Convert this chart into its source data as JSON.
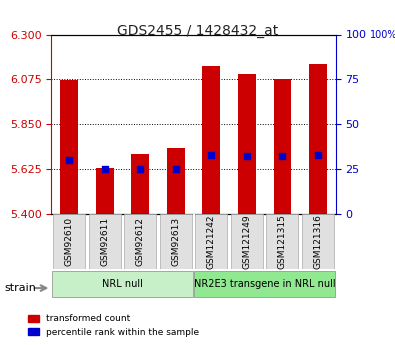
{
  "title": "GDS2455 / 1428432_at",
  "samples": [
    "GSM92610",
    "GSM92611",
    "GSM92612",
    "GSM92613",
    "GSM121242",
    "GSM121249",
    "GSM121315",
    "GSM121316"
  ],
  "red_values": [
    6.07,
    5.63,
    5.7,
    5.73,
    6.14,
    6.1,
    6.075,
    6.15
  ],
  "blue_values": [
    30,
    25,
    25,
    25,
    33,
    32,
    32,
    33
  ],
  "ymin": 5.4,
  "ymax": 6.3,
  "yticks_left": [
    5.4,
    5.625,
    5.85,
    6.075,
    6.3
  ],
  "yticks_right": [
    0,
    25,
    50,
    75,
    100
  ],
  "groups": [
    {
      "label": "NRL null",
      "start": 0,
      "end": 4,
      "color": "#c8f0c8"
    },
    {
      "label": "NR2E3 transgene in NRL null",
      "start": 4,
      "end": 8,
      "color": "#90e890"
    }
  ],
  "bar_color": "#cc0000",
  "dot_color": "#0000cc",
  "axis_color_left": "#cc0000",
  "axis_color_right": "#0000cc",
  "background_color": "#ffffff",
  "plot_bg_color": "#ffffff",
  "grid_color": "#000000",
  "xlabel_color": "#888888",
  "title_color": "#333333"
}
